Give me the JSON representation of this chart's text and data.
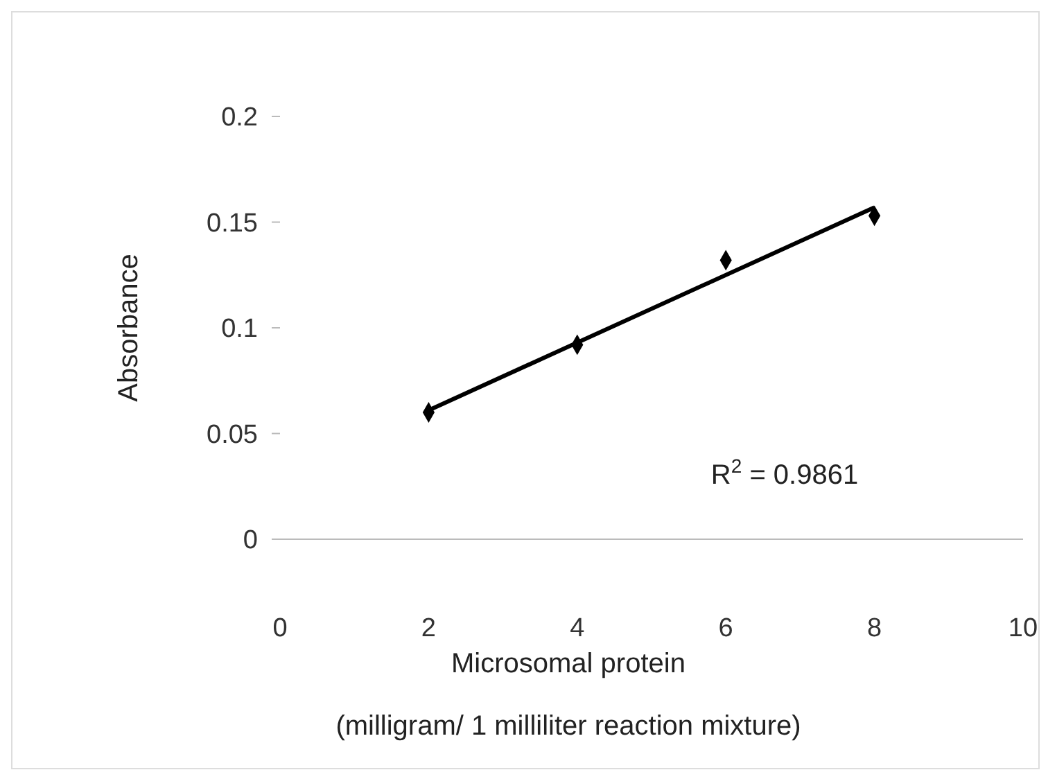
{
  "chart_data": {
    "type": "scatter",
    "xlabel": "Microsomal protein\n(milligram/  1 milliliter reaction mixture)",
    "ylabel": "Absorbance",
    "x": [
      2,
      4,
      6,
      8
    ],
    "series": [
      {
        "color": "#000000",
        "marker": "diamond",
        "values": [
          0.06,
          0.092,
          0.132,
          0.153
        ]
      },
      {
        "type": "line",
        "color": "#000000",
        "marker": "none",
        "x": [
          2,
          8
        ],
        "values": [
          0.061,
          0.157
        ]
      }
    ],
    "xlim": [
      0,
      10
    ],
    "xticks": [
      0,
      2,
      4,
      6,
      8,
      10
    ],
    "ylim": [
      0,
      0.2
    ],
    "yticks": [
      0,
      0.05,
      0.1,
      0.15,
      0.2
    ],
    "grid": false,
    "legend": false,
    "annotations": [
      "R$^{2}$ = 0.9861"
    ]
  }
}
